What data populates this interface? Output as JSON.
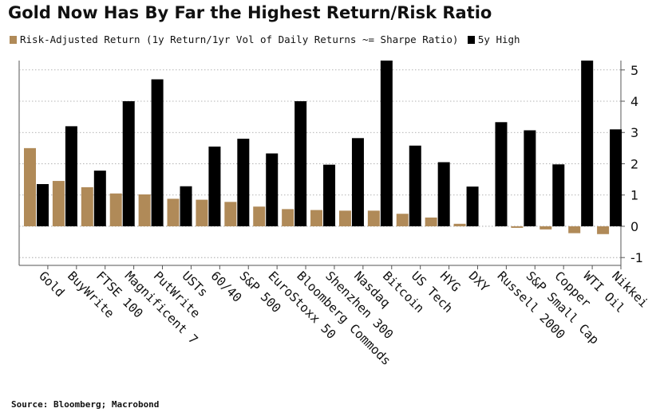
{
  "chart_data": {
    "type": "bar",
    "title": "Gold Now Has By Far the Highest Return/Risk Ratio",
    "categories": [
      "Gold",
      "BuyWrite",
      "FTSE 100",
      "Magnificent 7",
      "PutWrite",
      "USTs",
      "60/40",
      "S&P 500",
      "EuroStoxx 50",
      "Bloomberg Commods",
      "Shenzhen 300",
      "Nasdaq",
      "Bitcoin",
      "US Tech",
      "HYG",
      "DXY",
      "Russell 2000",
      "S&P Small Cap",
      "Copper",
      "WTI Oil",
      "Nikkei"
    ],
    "series": [
      {
        "name": "Risk-Adjusted Return (1y Return/1yr Vol of Daily Returns ~= Sharpe Ratio)",
        "color": "#b08a58",
        "values": [
          2.5,
          1.45,
          1.25,
          1.05,
          1.02,
          0.88,
          0.85,
          0.78,
          0.63,
          0.55,
          0.52,
          0.5,
          0.5,
          0.4,
          0.28,
          0.08,
          0.0,
          -0.05,
          -0.1,
          -0.22,
          -0.25
        ]
      },
      {
        "name": "5y High",
        "color": "#000000",
        "values": [
          1.35,
          3.2,
          1.78,
          4.0,
          4.7,
          1.28,
          2.55,
          2.8,
          2.33,
          4.0,
          1.97,
          2.82,
          5.3,
          2.58,
          2.05,
          1.27,
          3.33,
          3.07,
          1.98,
          5.3,
          3.1
        ]
      }
    ],
    "ylim": [
      -1.25,
      5.3
    ],
    "yticks": [
      -1,
      0,
      1,
      2,
      3,
      4,
      5
    ],
    "y_axis_position": "right",
    "grid": true,
    "legend_position": "top"
  },
  "legend": {
    "item1": "Risk-Adjusted Return (1y Return/1yr Vol of Daily Returns ~= Sharpe Ratio)",
    "item2": "5y High"
  },
  "source": "Source: Bloomberg; Macrobond"
}
